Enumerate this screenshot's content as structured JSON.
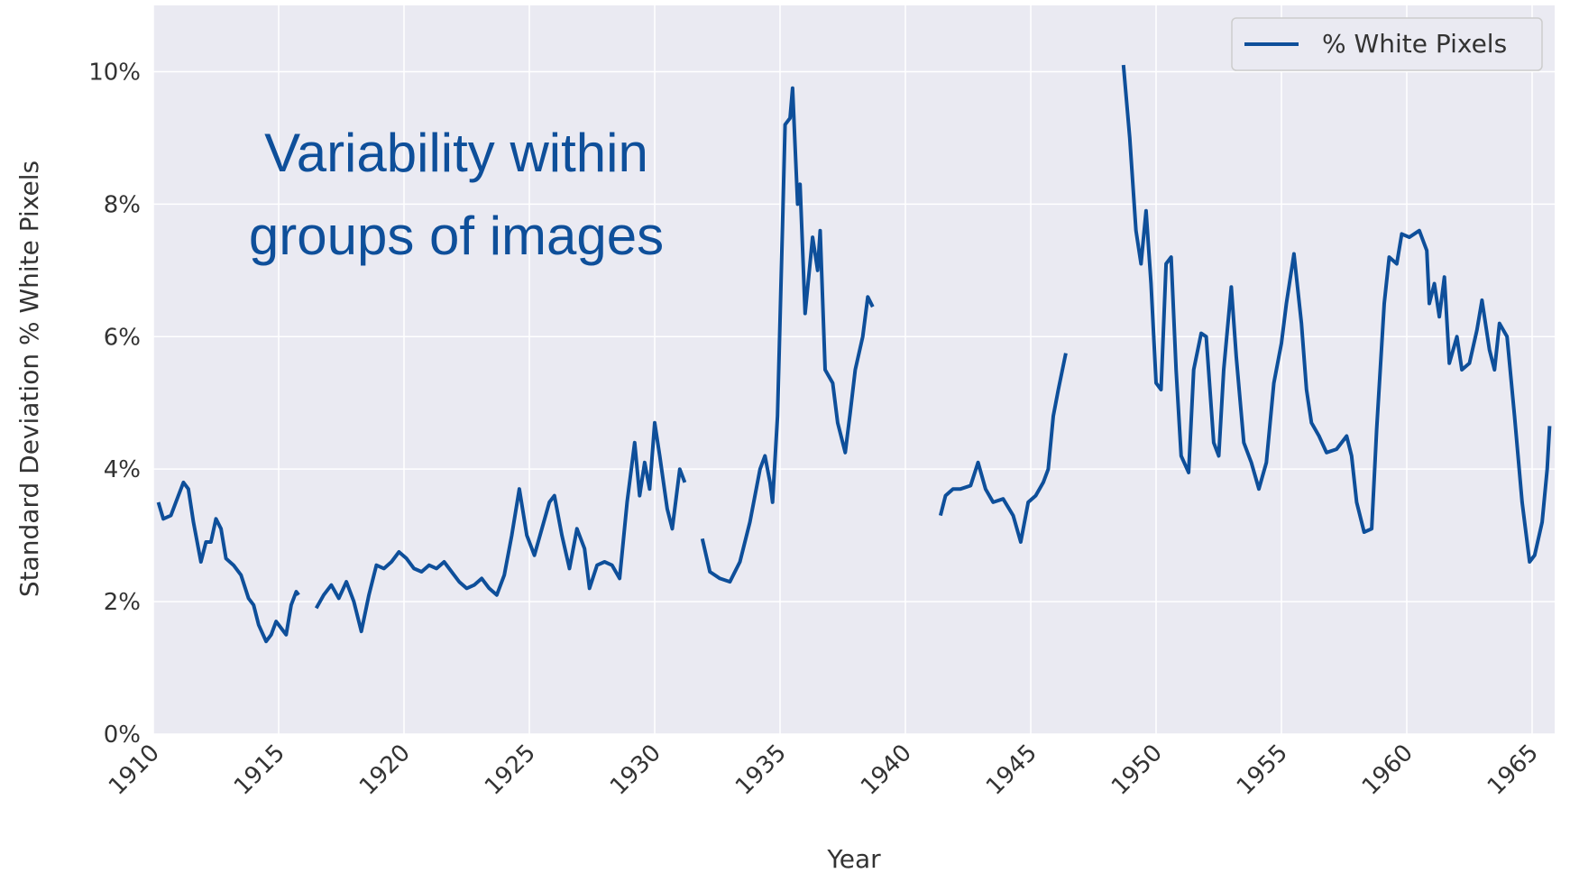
{
  "chart_data": {
    "type": "line",
    "annotations": [
      "Variability within",
      "groups of images"
    ],
    "xlabel": "Year",
    "ylabel": "Standard Deviation % White Pixels",
    "xlim": [
      1910,
      1965.9
    ],
    "xticks": [
      1910,
      1915,
      1920,
      1925,
      1930,
      1935,
      1940,
      1945,
      1950,
      1955,
      1960,
      1965
    ],
    "ylim": [
      0,
      11
    ],
    "yticks": [
      {
        "value": 0,
        "label": "0%"
      },
      {
        "value": 2,
        "label": "2%"
      },
      {
        "value": 4,
        "label": "4%"
      },
      {
        "value": 6,
        "label": "6%"
      },
      {
        "value": 8,
        "label": "8%"
      },
      {
        "value": 10,
        "label": "10%"
      }
    ],
    "grid": true,
    "legend": "upper right",
    "x": [
      1910.2,
      1910.4,
      1910.7,
      1911.0,
      1911.2,
      1911.4,
      1911.6,
      1911.9,
      1912.1,
      1912.3,
      1912.5,
      1912.7,
      1912.9,
      1913.2,
      1913.5,
      1913.8,
      1914.0,
      1914.2,
      1914.5,
      1914.7,
      1914.9,
      1915.1,
      1915.3,
      1915.5,
      1915.7,
      1915.8,
      1916.1,
      1916.5,
      1916.8,
      1917.1,
      1917.4,
      1917.7,
      1918.0,
      1918.3,
      1918.6,
      1918.9,
      1919.2,
      1919.5,
      1919.8,
      1920.1,
      1920.4,
      1920.7,
      1921.0,
      1921.3,
      1921.6,
      1921.9,
      1922.2,
      1922.5,
      1922.8,
      1923.1,
      1923.4,
      1923.7,
      1924.0,
      1924.3,
      1924.6,
      1924.9,
      1925.2,
      1925.5,
      1925.8,
      1926.0,
      1926.3,
      1926.6,
      1926.9,
      1927.2,
      1927.4,
      1927.7,
      1928.0,
      1928.3,
      1928.6,
      1928.9,
      1929.2,
      1929.4,
      1929.6,
      1929.8,
      1930.0,
      1930.2,
      1930.5,
      1930.7,
      1931.0,
      1931.2,
      1931.6,
      1931.9,
      1932.2,
      1932.6,
      1933.0,
      1933.4,
      1933.8,
      1934.2,
      1934.4,
      1934.6,
      1934.7,
      1934.9,
      1935.1,
      1935.2,
      1935.4,
      1935.5,
      1935.7,
      1935.8,
      1936.0,
      1936.3,
      1936.5,
      1936.6,
      1936.8,
      1937.1,
      1937.3,
      1937.6,
      1937.8,
      1938.0,
      1938.3,
      1938.5,
      1938.7,
      1940.0,
      1941.4,
      1941.6,
      1941.9,
      1942.2,
      1942.6,
      1942.9,
      1943.2,
      1943.5,
      1943.9,
      1944.3,
      1944.6,
      1944.9,
      1945.2,
      1945.5,
      1945.7,
      1945.9,
      1946.1,
      1946.4,
      1947.5,
      1948.7,
      1948.95,
      1949.2,
      1949.4,
      1949.6,
      1949.8,
      1950.0,
      1950.2,
      1950.4,
      1950.6,
      1950.8,
      1951.0,
      1951.3,
      1951.5,
      1951.8,
      1952.0,
      1952.3,
      1952.5,
      1952.7,
      1953.0,
      1953.2,
      1953.5,
      1953.8,
      1954.1,
      1954.4,
      1954.7,
      1955.0,
      1955.2,
      1955.5,
      1955.8,
      1956.0,
      1956.2,
      1956.5,
      1956.8,
      1957.2,
      1957.6,
      1957.8,
      1958.0,
      1958.3,
      1958.6,
      1958.8,
      1959.1,
      1959.3,
      1959.6,
      1959.8,
      1960.1,
      1960.5,
      1960.8,
      1960.9,
      1961.1,
      1961.3,
      1961.5,
      1961.7,
      1962.0,
      1962.2,
      1962.5,
      1962.8,
      1963.0,
      1963.3,
      1963.5,
      1963.7,
      1964.0,
      1964.3,
      1964.6,
      1964.9,
      1965.1,
      1965.4,
      1965.6,
      1965.7
    ],
    "series": [
      {
        "name": "% White Pixels",
        "color": "#0e4f9a",
        "values": [
          3.5,
          3.25,
          3.3,
          3.6,
          3.8,
          3.7,
          3.2,
          2.6,
          2.9,
          2.9,
          3.25,
          3.1,
          2.65,
          2.55,
          2.4,
          2.05,
          1.95,
          1.65,
          1.4,
          1.5,
          1.7,
          1.6,
          1.5,
          1.95,
          2.15,
          2.1,
          null,
          1.9,
          2.1,
          2.25,
          2.05,
          2.3,
          2.0,
          1.55,
          2.1,
          2.55,
          2.5,
          2.6,
          2.75,
          2.65,
          2.5,
          2.45,
          2.55,
          2.5,
          2.6,
          2.45,
          2.3,
          2.2,
          2.25,
          2.35,
          2.2,
          2.1,
          2.4,
          3.0,
          3.7,
          3.0,
          2.7,
          3.1,
          3.5,
          3.6,
          3.0,
          2.5,
          3.1,
          2.8,
          2.2,
          2.55,
          2.6,
          2.55,
          2.35,
          3.5,
          4.4,
          3.6,
          4.1,
          3.7,
          4.7,
          4.2,
          3.4,
          3.1,
          4.0,
          3.8,
          null,
          2.95,
          2.45,
          2.35,
          2.3,
          2.6,
          3.2,
          4.0,
          4.2,
          3.8,
          3.5,
          4.8,
          7.7,
          9.2,
          9.3,
          9.75,
          8.0,
          8.3,
          6.35,
          7.5,
          7.0,
          7.6,
          5.5,
          5.3,
          4.7,
          4.25,
          4.85,
          5.5,
          6.0,
          6.6,
          6.45,
          null,
          3.3,
          3.6,
          3.7,
          3.7,
          3.75,
          4.1,
          3.7,
          3.5,
          3.55,
          3.3,
          2.9,
          3.5,
          3.6,
          3.8,
          4.0,
          4.8,
          5.2,
          5.75,
          null,
          10.1,
          9.0,
          7.6,
          7.1,
          7.9,
          6.8,
          5.3,
          5.2,
          7.1,
          7.2,
          5.5,
          4.2,
          3.95,
          5.5,
          6.05,
          6.0,
          4.4,
          4.2,
          5.5,
          6.75,
          5.7,
          4.4,
          4.1,
          3.7,
          4.1,
          5.3,
          5.9,
          6.5,
          7.25,
          6.2,
          5.2,
          4.7,
          4.5,
          4.25,
          4.3,
          4.5,
          4.2,
          3.5,
          3.05,
          3.1,
          4.6,
          6.5,
          7.2,
          7.1,
          7.55,
          7.5,
          7.6,
          7.3,
          6.5,
          6.8,
          6.3,
          6.9,
          5.6,
          6.0,
          5.5,
          5.6,
          6.1,
          6.55,
          5.8,
          5.5,
          6.2,
          6.0,
          4.8,
          3.5,
          2.6,
          2.7,
          3.2,
          4.0,
          4.65
        ]
      }
    ]
  }
}
